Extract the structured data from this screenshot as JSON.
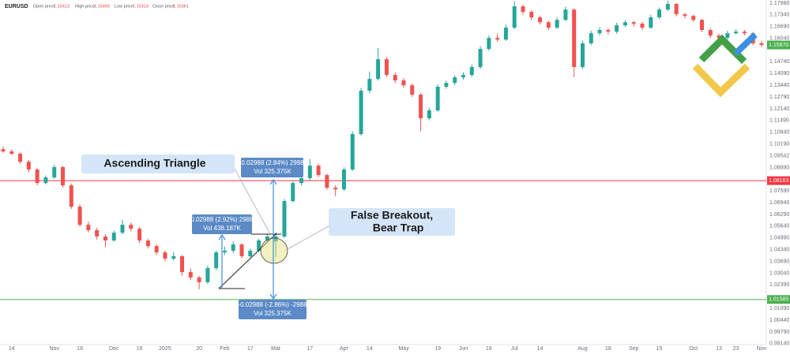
{
  "chart_data": {
    "type": "candlestick",
    "symbol": "EURUSD",
    "ohlc": [
      {
        "label": "Open price:",
        "value": 1.15413
      },
      {
        "label": "High price:",
        "value": 1.15456
      },
      {
        "label": "Low price:",
        "value": 1.15314
      },
      {
        "label": "Close price:",
        "value": 1.15361
      }
    ],
    "up_color": "#26a69a",
    "down_color": "#ef5350",
    "ylim": [
      0.9909,
      1.1816
    ],
    "yticks": [
      {
        "value": 1.1798,
        "label": "1.17980"
      },
      {
        "value": 1.1734,
        "label": "1.17340"
      },
      {
        "value": 1.1669,
        "label": "1.16690"
      },
      {
        "value": 1.1604,
        "label": "1.16040"
      },
      {
        "value": 1.1474,
        "label": "1.14740"
      },
      {
        "value": 1.1409,
        "label": "1.14090"
      },
      {
        "value": 1.1344,
        "label": "1.13440"
      },
      {
        "value": 1.1279,
        "label": "1.12790"
      },
      {
        "value": 1.1214,
        "label": "1.12140"
      },
      {
        "value": 1.1149,
        "label": "1.11490"
      },
      {
        "value": 1.1084,
        "label": "1.10840"
      },
      {
        "value": 1.1019,
        "label": "1.10190"
      },
      {
        "value": 1.09542,
        "label": "1.09542"
      },
      {
        "value": 1.0889,
        "label": "1.08890"
      },
      {
        "value": 1.0759,
        "label": "1.07590"
      },
      {
        "value": 1.0694,
        "label": "1.06940"
      },
      {
        "value": 1.0629,
        "label": "1.06290"
      },
      {
        "value": 1.0564,
        "label": "1.05640"
      },
      {
        "value": 1.0499,
        "label": "1.04990"
      },
      {
        "value": 1.0434,
        "label": "1.04340"
      },
      {
        "value": 1.0369,
        "label": "1.03690"
      },
      {
        "value": 1.0304,
        "label": "1.03040"
      },
      {
        "value": 1.0239,
        "label": "1.02390"
      },
      {
        "value": 1.0109,
        "label": "1.01090"
      },
      {
        "value": 1.0044,
        "label": "1.00440"
      },
      {
        "value": 0.9979,
        "label": "0.99790"
      },
      {
        "value": 0.9914,
        "label": "0.99140"
      }
    ],
    "grid": false,
    "hlines": [
      {
        "value": 1.08163,
        "color": "#f23645"
      },
      {
        "value": 1.01585,
        "color": "#4caf50"
      }
    ],
    "last_price": {
      "value": 1.1567,
      "label": "1.15670"
    },
    "last_price_color": "#4caf50",
    "categories": [
      null,
      "14",
      null,
      null,
      null,
      null,
      "Nov",
      null,
      null,
      "18",
      null,
      null,
      null,
      "Dec",
      null,
      null,
      "16",
      null,
      null,
      "2025",
      null,
      null,
      null,
      "20",
      null,
      null,
      "Feb",
      null,
      null,
      "17",
      null,
      null,
      "Mar",
      null,
      null,
      null,
      "17",
      null,
      null,
      null,
      "Apr",
      null,
      null,
      "14",
      null,
      null,
      null,
      "May",
      null,
      null,
      null,
      "19",
      null,
      null,
      "Jun",
      null,
      null,
      "16",
      null,
      null,
      "Jul",
      null,
      null,
      "14",
      null,
      null,
      null,
      null,
      "Aug",
      null,
      null,
      "18",
      null,
      null,
      "Sep",
      null,
      null,
      "15",
      null,
      null,
      null,
      "Oct",
      null,
      null,
      "13",
      null,
      "23",
      null,
      null,
      "Nov"
    ],
    "candles": [
      [
        1.099,
        1.1005,
        1.097,
        1.0978
      ],
      [
        1.0978,
        1.099,
        1.0958,
        1.0965
      ],
      [
        1.0965,
        1.0972,
        1.091,
        1.0921
      ],
      [
        1.0921,
        1.093,
        1.0862,
        1.0878
      ],
      [
        1.0878,
        1.0885,
        1.079,
        1.0803
      ],
      [
        1.0803,
        1.0845,
        1.0795,
        1.0834
      ],
      [
        1.0834,
        1.0905,
        1.0825,
        1.0891
      ],
      [
        1.0891,
        1.0898,
        1.0778,
        1.079
      ],
      [
        1.079,
        1.08,
        1.066,
        1.0672
      ],
      [
        1.0672,
        1.0685,
        1.056,
        1.0572
      ],
      [
        1.0572,
        1.059,
        1.053,
        1.0542
      ],
      [
        1.0542,
        1.0555,
        1.049,
        1.0507
      ],
      [
        1.0507,
        1.052,
        1.045,
        1.0485
      ],
      [
        1.0485,
        1.054,
        1.0478,
        1.0528
      ],
      [
        1.0528,
        1.06,
        1.052,
        1.0572
      ],
      [
        1.0572,
        1.0585,
        1.0535,
        1.055
      ],
      [
        1.055,
        1.056,
        1.047,
        1.0485
      ],
      [
        1.0485,
        1.0495,
        1.044,
        1.0454
      ],
      [
        1.0454,
        1.0465,
        1.0405,
        1.0419
      ],
      [
        1.0419,
        1.043,
        1.037,
        1.0384
      ],
      [
        1.0384,
        1.042,
        1.0375,
        1.0398
      ],
      [
        1.0398,
        1.0405,
        1.029,
        1.031
      ],
      [
        1.031,
        1.033,
        1.0265,
        1.028
      ],
      [
        1.028,
        1.029,
        1.0215,
        1.0254
      ],
      [
        1.0254,
        1.0345,
        1.0245,
        1.0332
      ],
      [
        1.0332,
        1.043,
        1.032,
        1.0419
      ],
      [
        1.0419,
        1.045,
        1.0405,
        1.0428
      ],
      [
        1.0428,
        1.048,
        1.0415,
        1.0463
      ],
      [
        1.0463,
        1.047,
        1.0385,
        1.0398
      ],
      [
        1.0398,
        1.044,
        1.039,
        1.0428
      ],
      [
        1.0428,
        1.0495,
        1.042,
        1.0485
      ],
      [
        1.0485,
        1.052,
        1.0475,
        1.0507
      ],
      [
        1.048,
        1.053,
        1.0393,
        1.0507
      ],
      [
        1.0507,
        1.0715,
        1.05,
        1.0703
      ],
      [
        1.0703,
        1.0815,
        1.0695,
        1.0803
      ],
      [
        1.0803,
        1.0845,
        1.079,
        1.083
      ],
      [
        1.083,
        1.0935,
        1.082,
        1.0899
      ],
      [
        1.0899,
        1.091,
        1.0835,
        1.0847
      ],
      [
        1.0847,
        1.0855,
        1.0765,
        1.0777
      ],
      [
        1.0777,
        1.079,
        1.073,
        1.0768
      ],
      [
        1.0768,
        1.089,
        1.076,
        1.0878
      ],
      [
        1.0878,
        1.109,
        1.087,
        1.1074
      ],
      [
        1.1074,
        1.133,
        1.1065,
        1.1314
      ],
      [
        1.1314,
        1.142,
        1.13,
        1.1379
      ],
      [
        1.1379,
        1.155,
        1.137,
        1.1488
      ],
      [
        1.1488,
        1.15,
        1.139,
        1.1401
      ],
      [
        1.1401,
        1.1415,
        1.1355,
        1.1371
      ],
      [
        1.1371,
        1.1385,
        1.133,
        1.1344
      ],
      [
        1.1344,
        1.1355,
        1.128,
        1.1292
      ],
      [
        1.1292,
        1.13,
        1.109,
        1.1161
      ],
      [
        1.1161,
        1.122,
        1.115,
        1.1205
      ],
      [
        1.1205,
        1.135,
        1.1195,
        1.1336
      ],
      [
        1.1336,
        1.137,
        1.1325,
        1.1357
      ],
      [
        1.1357,
        1.14,
        1.1345,
        1.1388
      ],
      [
        1.1388,
        1.1415,
        1.1375,
        1.1401
      ],
      [
        1.1401,
        1.146,
        1.139,
        1.1445
      ],
      [
        1.1445,
        1.156,
        1.1435,
        1.1545
      ],
      [
        1.1545,
        1.162,
        1.1535,
        1.1606
      ],
      [
        1.1606,
        1.163,
        1.1585,
        1.1597
      ],
      [
        1.1597,
        1.168,
        1.159,
        1.1663
      ],
      [
        1.1663,
        1.181,
        1.1655,
        1.1781
      ],
      [
        1.1781,
        1.179,
        1.1735,
        1.175
      ],
      [
        1.175,
        1.176,
        1.1705,
        1.172
      ],
      [
        1.172,
        1.173,
        1.168,
        1.1693
      ],
      [
        1.1693,
        1.17,
        1.165,
        1.1663
      ],
      [
        1.1663,
        1.172,
        1.1655,
        1.1706
      ],
      [
        1.1706,
        1.178,
        1.17,
        1.1763
      ],
      [
        1.1763,
        1.177,
        1.139,
        1.1445
      ],
      [
        1.1445,
        1.159,
        1.1435,
        1.1576
      ],
      [
        1.1576,
        1.1645,
        1.1565,
        1.1632
      ],
      [
        1.1632,
        1.1665,
        1.162,
        1.165
      ],
      [
        1.165,
        1.166,
        1.1625,
        1.1641
      ],
      [
        1.1641,
        1.169,
        1.163,
        1.1676
      ],
      [
        1.1676,
        1.1705,
        1.1665,
        1.1693
      ],
      [
        1.1693,
        1.17,
        1.167,
        1.1685
      ],
      [
        1.1685,
        1.1695,
        1.165,
        1.1663
      ],
      [
        1.1663,
        1.1735,
        1.1655,
        1.172
      ],
      [
        1.172,
        1.1775,
        1.171,
        1.1763
      ],
      [
        1.1763,
        1.1812,
        1.1755,
        1.1794
      ],
      [
        1.1794,
        1.18,
        1.1725,
        1.1737
      ],
      [
        1.1737,
        1.1745,
        1.1715,
        1.1728
      ],
      [
        1.1728,
        1.1735,
        1.1695,
        1.1706
      ],
      [
        1.1706,
        1.1712,
        1.164,
        1.165
      ],
      [
        1.165,
        1.166,
        1.1605,
        1.1619
      ],
      [
        1.1619,
        1.163,
        1.1595,
        1.1606
      ],
      [
        1.1606,
        1.1645,
        1.1598,
        1.1632
      ],
      [
        1.1632,
        1.1655,
        1.1625,
        1.1641
      ],
      [
        1.1641,
        1.165,
        1.162,
        1.1632
      ],
      [
        1.1632,
        1.164,
        1.1565,
        1.1576
      ],
      [
        1.1576,
        1.159,
        1.1555,
        1.1567
      ]
    ],
    "annotations": {
      "pattern": "Ascending Triangle",
      "trap": [
        "False Breakout,",
        "Bear Trap"
      ],
      "measures": [
        [
          "0.02988 (2.92%) 2988",
          "Vol 438.187K"
        ],
        [
          "0.02988 (2.84%) 2988",
          "Vol 325.375K"
        ],
        [
          "-0.02988 (-2.86%) -2988",
          "Vol 325.375K"
        ]
      ]
    }
  }
}
